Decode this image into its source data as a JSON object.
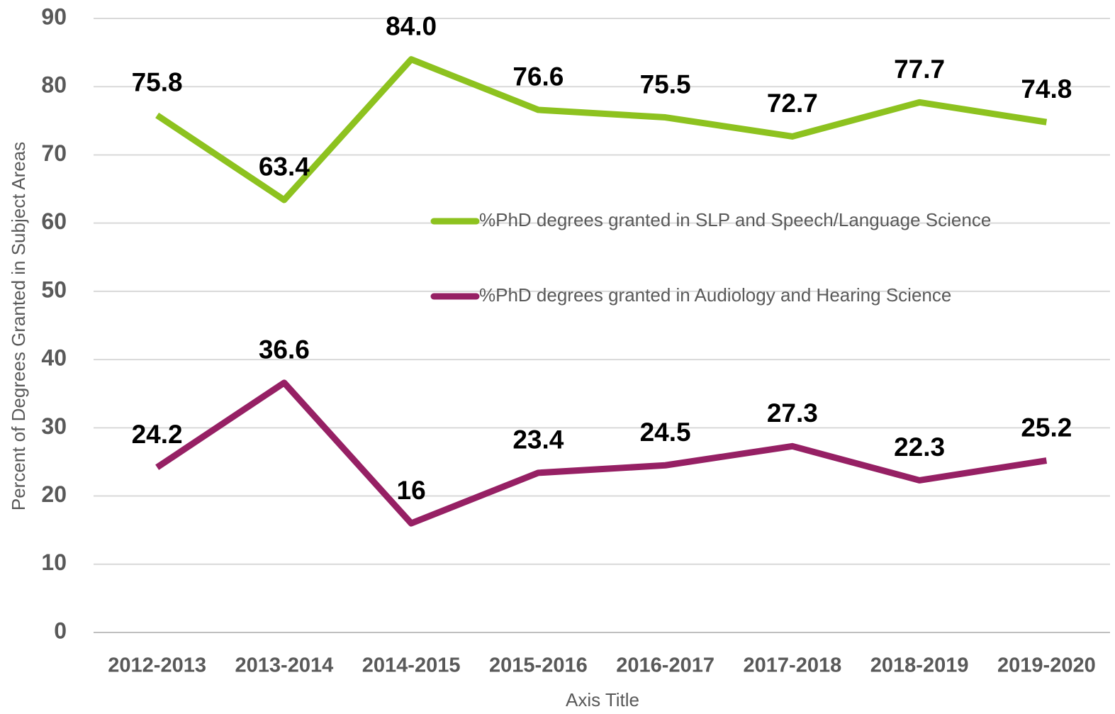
{
  "chart_data": {
    "type": "line",
    "y_axis_title": "Percent of Degrees Granted in Subject Areas",
    "x_axis_title": "Axis Title",
    "categories": [
      "2012-2013",
      "2013-2014",
      "2014-2015",
      "2015-2016",
      "2016-2017",
      "2017-2018",
      "2018-2019",
      "2019-2020"
    ],
    "series": [
      {
        "name": "%PhD degrees granted in SLP and Speech/Language Science",
        "color": "#8dc21f",
        "values": [
          75.8,
          63.4,
          84,
          76.6,
          75.5,
          72.7,
          77.7,
          74.8
        ],
        "value_labels": [
          "75.8",
          "63.4",
          "84.0",
          "76.6",
          "75.5",
          "72.7",
          "77.7",
          "74.8"
        ]
      },
      {
        "name": "%PhD degrees granted in Audiology and Hearing Science",
        "color": "#962064",
        "values": [
          24.2,
          36.6,
          16,
          23.4,
          24.5,
          27.3,
          22.3,
          25.2
        ]
      }
    ],
    "ylim": [
      0,
      90
    ],
    "yticks": [
      0,
      10,
      20,
      30,
      40,
      50,
      60,
      70,
      80,
      90
    ],
    "grid": true,
    "legend": "right"
  }
}
